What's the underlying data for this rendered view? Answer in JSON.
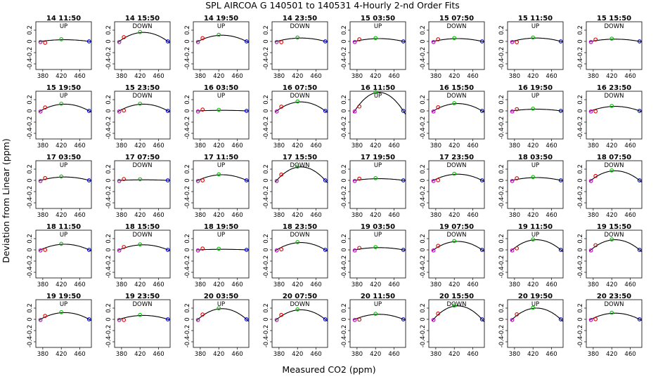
{
  "title": "SPL   AIRCOA G   140501 to 140531   4-Hourly 2-nd Order Fits",
  "xlabel": "Measured CO2 (ppm)",
  "ylabel": "Deviation from Linear (ppm)",
  "colors": {
    "curve": "#000000",
    "red": "#e00000",
    "green": "#00c000",
    "blue": "#0000d0",
    "magenta": "#c000c0"
  },
  "chart_data": {
    "type": "scatter",
    "xlim": [
      365,
      485
    ],
    "ylim": [
      -0.5,
      0.35
    ],
    "xticks": [
      380,
      420,
      460
    ],
    "yticks": [
      -0.4,
      -0.2,
      0.0,
      0.2
    ],
    "ytick_labels": [
      "-0.4",
      "-0.2",
      "0",
      "0.2"
    ],
    "standards_x": [
      375,
      385,
      420,
      480
    ],
    "panels": [
      {
        "label": "14 11:50",
        "dir": "UP",
        "a": 0.03
      },
      {
        "label": "14 15:50",
        "dir": "DOWN",
        "a": 0.16
      },
      {
        "label": "14 19:50",
        "dir": "UP",
        "a": 0.11
      },
      {
        "label": "14 23:50",
        "dir": "DOWN",
        "a": 0.06
      },
      {
        "label": "15 03:50",
        "dir": "UP",
        "a": 0.05
      },
      {
        "label": "15 07:50",
        "dir": "DOWN",
        "a": 0.05
      },
      {
        "label": "15 11:50",
        "dir": "UP",
        "a": 0.06
      },
      {
        "label": "15 15:50",
        "dir": "DOWN",
        "a": 0.04
      },
      {
        "label": "15 19:50",
        "dir": "UP",
        "a": 0.12
      },
      {
        "label": "15 23:50",
        "dir": "DOWN",
        "a": 0.12
      },
      {
        "label": "16 03:50",
        "dir": "UP",
        "a": 0.01
      },
      {
        "label": "16 07:50",
        "dir": "DOWN",
        "a": 0.16
      },
      {
        "label": "16 11:50",
        "dir": "UP",
        "a": 0.33
      },
      {
        "label": "16 15:50",
        "dir": "DOWN",
        "a": 0.13
      },
      {
        "label": "16 19:50",
        "dir": "UP",
        "a": 0.03
      },
      {
        "label": "16 23:50",
        "dir": "DOWN",
        "a": 0.08
      },
      {
        "label": "17 03:50",
        "dir": "UP",
        "a": 0.06
      },
      {
        "label": "17 07:50",
        "dir": "DOWN",
        "a": 0.01
      },
      {
        "label": "17 11:50",
        "dir": "UP",
        "a": 0.1
      },
      {
        "label": "17 15:50",
        "dir": "DOWN",
        "a": 0.24
      },
      {
        "label": "17 19:50",
        "dir": "UP",
        "a": 0.03
      },
      {
        "label": "17 23:50",
        "dir": "DOWN",
        "a": 0.11
      },
      {
        "label": "18 03:50",
        "dir": "UP",
        "a": 0.05
      },
      {
        "label": "18 07:50",
        "dir": "DOWN",
        "a": 0.17
      },
      {
        "label": "18 11:50",
        "dir": "UP",
        "a": 0.1
      },
      {
        "label": "18 15:50",
        "dir": "DOWN",
        "a": 0.09
      },
      {
        "label": "18 19:50",
        "dir": "UP",
        "a": 0.01
      },
      {
        "label": "18 23:50",
        "dir": "DOWN",
        "a": 0.13
      },
      {
        "label": "19 03:50",
        "dir": "UP",
        "a": 0.04
      },
      {
        "label": "19 07:50",
        "dir": "DOWN",
        "a": 0.15
      },
      {
        "label": "19 11:50",
        "dir": "UP",
        "a": 0.18
      },
      {
        "label": "19 15:50",
        "dir": "DOWN",
        "a": 0.18
      },
      {
        "label": "19 19:50",
        "dir": "UP",
        "a": 0.12
      },
      {
        "label": "19 23:50",
        "dir": "DOWN",
        "a": 0.07
      },
      {
        "label": "20 03:50",
        "dir": "UP",
        "a": 0.19
      },
      {
        "label": "20 07:50",
        "dir": "DOWN",
        "a": 0.17
      },
      {
        "label": "20 11:50",
        "dir": "UP",
        "a": 0.09
      },
      {
        "label": "20 15:50",
        "dir": "DOWN",
        "a": 0.24
      },
      {
        "label": "20 19:50",
        "dir": "UP",
        "a": 0.2
      },
      {
        "label": "20 23:50",
        "dir": "DOWN",
        "a": 0.11
      }
    ]
  }
}
